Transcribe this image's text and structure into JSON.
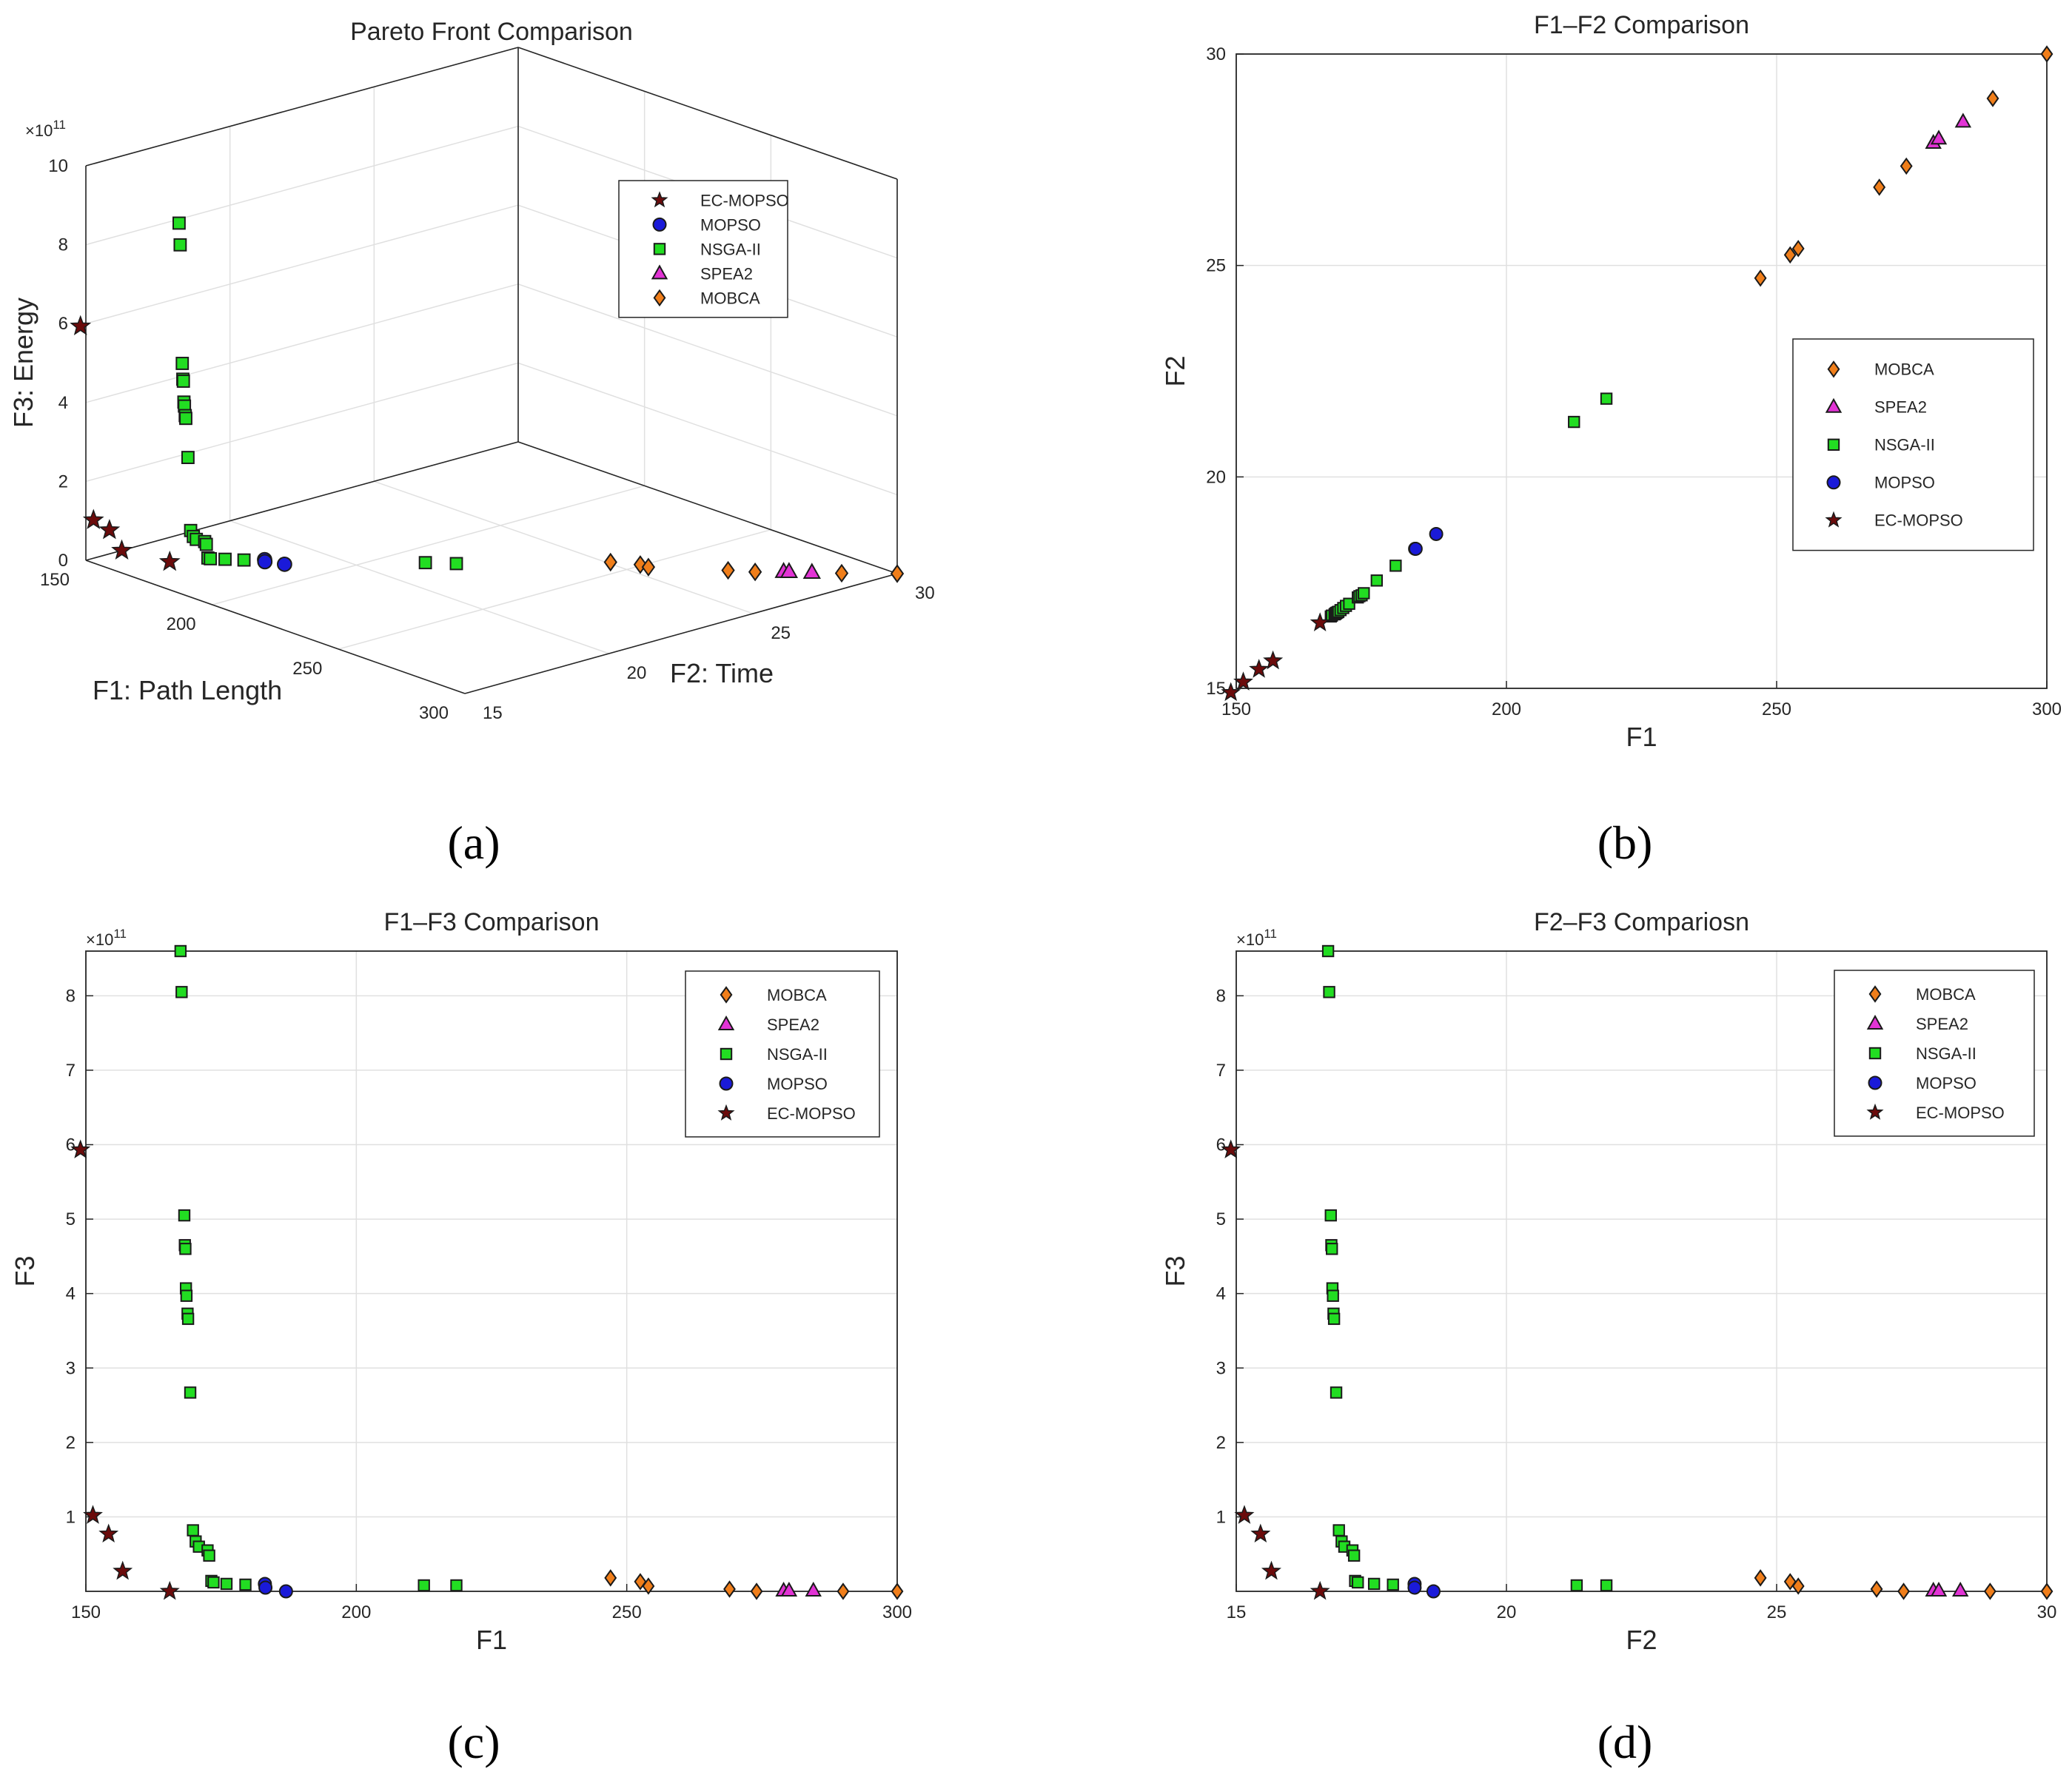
{
  "figure": {
    "colors": {
      "EC-MOPSO": "#6b0b0b",
      "MOPSO": "#1a1ad9",
      "NSGA-II": "#22dd22",
      "SPEA2": "#e233d5",
      "MOBCA": "#f07e1a",
      "grid": "#e0e0e0",
      "axis": "#262626"
    },
    "markers": {
      "EC-MOPSO": "star-icon",
      "MOPSO": "circle-icon",
      "NSGA-II": "square-icon",
      "SPEA2": "triangle-icon",
      "MOBCA": "diamond-icon"
    }
  },
  "chart_data": [
    {
      "id": "a",
      "panel_label": "(a)",
      "type": "scatter3d",
      "title": "Pareto Front Comparison",
      "xlabel": "F1: Path Length",
      "ylabel": "F2: Time",
      "zlabel": "F3: Energy",
      "xlim": [
        150,
        300
      ],
      "ylim": [
        15,
        30
      ],
      "zlim": [
        0,
        10
      ],
      "xticks": [
        "150",
        "200",
        "250",
        "300"
      ],
      "yticks": [
        "15",
        "20",
        "25",
        "30"
      ],
      "zticks": [
        "0",
        "2",
        "4",
        "6",
        "8",
        "10"
      ],
      "z_exponent": "×10",
      "z_exponent_power": "11",
      "legend_order": [
        "EC-MOPSO",
        "MOPSO",
        "NSGA-II",
        "SPEA2",
        "MOBCA"
      ],
      "legend_position": "upper-right",
      "grid": true
    },
    {
      "id": "b",
      "panel_label": "(b)",
      "type": "scatter",
      "title": "F1–F2 Comparison",
      "xlabel": "F1",
      "ylabel": "F2",
      "xlim": [
        150,
        300
      ],
      "ylim": [
        15,
        30
      ],
      "xticks": [
        "150",
        "200",
        "250",
        "300"
      ],
      "yticks": [
        "15",
        "20",
        "25",
        "30"
      ],
      "legend_order": [
        "MOBCA",
        "SPEA2",
        "NSGA-II",
        "MOPSO",
        "EC-MOPSO"
      ],
      "legend_position": "right",
      "grid": true
    },
    {
      "id": "c",
      "panel_label": "(c)",
      "type": "scatter",
      "title": "F1–F3 Comparison",
      "xlabel": "F1",
      "ylabel": "F3",
      "xlim": [
        150,
        300
      ],
      "ylim": [
        0,
        8.6
      ],
      "xticks": [
        "150",
        "200",
        "250",
        "300"
      ],
      "yticks": [
        "1",
        "2",
        "3",
        "4",
        "5",
        "6",
        "7",
        "8"
      ],
      "y_exponent": "×10",
      "y_exponent_power": "11",
      "legend_order": [
        "MOBCA",
        "SPEA2",
        "NSGA-II",
        "MOPSO",
        "EC-MOPSO"
      ],
      "legend_position": "upper-right",
      "grid": true
    },
    {
      "id": "d",
      "panel_label": "(d)",
      "type": "scatter",
      "title": "F2–F3 Compariosn",
      "xlabel": "F2",
      "ylabel": "F3",
      "xlim": [
        15,
        30
      ],
      "ylim": [
        0,
        8.6
      ],
      "xticks": [
        "15",
        "20",
        "25",
        "30"
      ],
      "yticks": [
        "1",
        "2",
        "3",
        "4",
        "5",
        "6",
        "7",
        "8"
      ],
      "y_exponent": "×10",
      "y_exponent_power": "11",
      "legend_order": [
        "MOBCA",
        "SPEA2",
        "NSGA-II",
        "MOPSO",
        "EC-MOPSO"
      ],
      "legend_position": "upper-right",
      "grid": true
    }
  ],
  "series": [
    {
      "name": "EC-MOPSO",
      "points": [
        [
          149.0,
          14.9,
          5.93
        ],
        [
          151.3,
          15.15,
          1.02
        ],
        [
          154.2,
          15.45,
          0.77
        ],
        [
          156.8,
          15.65,
          0.27
        ],
        [
          165.5,
          16.55,
          0.0
        ]
      ]
    },
    {
      "name": "MOPSO",
      "points": [
        [
          183.1,
          18.3,
          0.1
        ],
        [
          183.2,
          18.3,
          0.05
        ],
        [
          187.0,
          18.65,
          0.0
        ]
      ]
    },
    {
      "name": "NSGA-II",
      "points": [
        [
          167.5,
          16.7,
          8.6
        ],
        [
          167.7,
          16.72,
          8.05
        ],
        [
          168.2,
          16.75,
          5.05
        ],
        [
          168.3,
          16.76,
          4.65
        ],
        [
          168.4,
          16.77,
          4.6
        ],
        [
          168.5,
          16.78,
          4.07
        ],
        [
          168.6,
          16.79,
          3.97
        ],
        [
          168.8,
          16.8,
          3.73
        ],
        [
          168.9,
          16.81,
          3.66
        ],
        [
          169.3,
          16.85,
          2.67
        ],
        [
          169.8,
          16.9,
          0.82
        ],
        [
          170.3,
          16.95,
          0.67
        ],
        [
          170.9,
          17.0,
          0.6
        ],
        [
          172.5,
          17.15,
          0.55
        ],
        [
          172.8,
          17.18,
          0.48
        ],
        [
          173.2,
          17.2,
          0.14
        ],
        [
          173.6,
          17.25,
          0.12
        ],
        [
          176.0,
          17.55,
          0.1
        ],
        [
          179.5,
          17.9,
          0.09
        ],
        [
          212.5,
          21.3,
          0.08
        ],
        [
          218.5,
          21.85,
          0.08
        ]
      ]
    },
    {
      "name": "SPEA2",
      "points": [
        [
          279.0,
          27.9,
          0.01
        ],
        [
          280.0,
          28.0,
          0.01
        ],
        [
          284.5,
          28.4,
          0.01
        ]
      ]
    },
    {
      "name": "MOBCA",
      "points": [
        [
          247.0,
          24.7,
          0.18
        ],
        [
          252.5,
          25.25,
          0.13
        ],
        [
          254.0,
          25.4,
          0.07
        ],
        [
          269.0,
          26.85,
          0.03
        ],
        [
          274.0,
          27.35,
          0.0
        ],
        [
          290.0,
          28.95,
          0.0
        ],
        [
          300.0,
          30.0,
          0.0
        ]
      ]
    }
  ]
}
